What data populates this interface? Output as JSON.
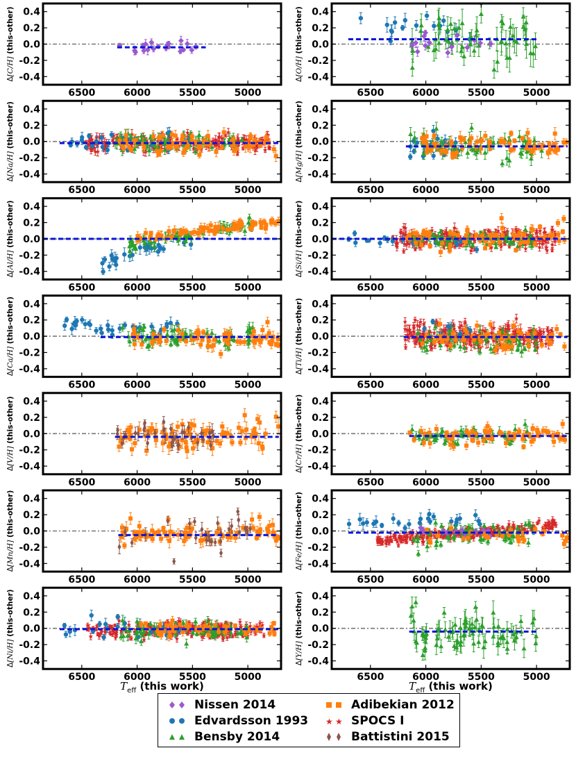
{
  "figure": {
    "xaxis_title_main": "T",
    "xaxis_title_sub": "eff",
    "xaxis_title_suffix": " (this work)"
  },
  "legend": [
    {
      "label": "Nissen 2014",
      "color": "#9b59d0",
      "marker": "diamond",
      "key": "nissen"
    },
    {
      "label": "Edvardsson 1993",
      "color": "#1f77b4",
      "marker": "circle",
      "key": "edv"
    },
    {
      "label": "Bensby 2014",
      "color": "#2ca02c",
      "marker": "triangle",
      "key": "bensby"
    },
    {
      "label": "Adibekian 2012",
      "color": "#ff7f0e",
      "marker": "square",
      "key": "adib"
    },
    {
      "label": "SPOCS I",
      "color": "#d62728",
      "marker": "star",
      "key": "spocs"
    },
    {
      "label": "Battistini 2015",
      "color": "#8c564b",
      "marker": "thin-diamond",
      "key": "batt"
    }
  ],
  "chart_data": [
    {
      "type": "scatter",
      "element": "C",
      "ylabel_elem": "C",
      "ylabel_suffix": " (this-other)",
      "xlim": [
        6850,
        4700
      ],
      "ylim": [
        -0.5,
        0.5
      ],
      "xticks": [
        6500,
        6000,
        5500,
        5000
      ],
      "yticks": [
        0.4,
        0.2,
        0.0,
        -0.2,
        -0.4
      ],
      "mean_offset": -0.04,
      "mean_range": [
        6180,
        5380
      ],
      "series": [
        {
          "key": "nissen",
          "n": 20,
          "tmin": 5380,
          "tmax": 6180,
          "mean": -0.02,
          "sd": 0.05,
          "err": 0.04
        }
      ]
    },
    {
      "type": "scatter",
      "element": "O",
      "ylabel_elem": "O",
      "ylabel_suffix": " (this-other)",
      "xlim": [
        6850,
        4700
      ],
      "ylim": [
        -0.5,
        0.5
      ],
      "xticks": [
        6500,
        6000,
        5500,
        5000
      ],
      "yticks": [
        0.4,
        0.2,
        0.0,
        -0.2,
        -0.4
      ],
      "mean_offset": 0.06,
      "mean_range": [
        6700,
        4980
      ],
      "series": [
        {
          "key": "edv",
          "n": 16,
          "tmin": 5500,
          "tmax": 6700,
          "mean": 0.22,
          "sd": 0.1,
          "err": 0.06
        },
        {
          "key": "bensby",
          "n": 60,
          "tmin": 4980,
          "tmax": 6150,
          "mean": 0.05,
          "sd": 0.15,
          "err": 0.12
        },
        {
          "key": "nissen",
          "n": 14,
          "tmin": 5400,
          "tmax": 6150,
          "mean": 0.04,
          "sd": 0.06,
          "err": 0.04
        }
      ]
    },
    {
      "type": "scatter",
      "element": "Na",
      "ylabel_elem": "Na",
      "ylabel_suffix": " (this-other)",
      "xlim": [
        6850,
        4700
      ],
      "ylim": [
        -0.5,
        0.5
      ],
      "xticks": [
        6500,
        6000,
        5500,
        5000
      ],
      "yticks": [
        0.4,
        0.2,
        0.0,
        -0.2,
        -0.4
      ],
      "mean_offset": -0.02,
      "mean_range": [
        6700,
        4720
      ],
      "series": [
        {
          "key": "spocs",
          "n": 180,
          "tmin": 4800,
          "tmax": 6480,
          "mean": -0.02,
          "sd": 0.05,
          "err": 0.04
        },
        {
          "key": "edv",
          "n": 30,
          "tmin": 5500,
          "tmax": 6700,
          "mean": -0.02,
          "sd": 0.05,
          "err": 0.05
        },
        {
          "key": "bensby",
          "n": 70,
          "tmin": 5000,
          "tmax": 6200,
          "mean": -0.01,
          "sd": 0.06,
          "err": 0.05
        },
        {
          "key": "adib",
          "n": 70,
          "tmin": 4720,
          "tmax": 6200,
          "mean": -0.03,
          "sd": 0.07,
          "err": 0.05
        }
      ]
    },
    {
      "type": "scatter",
      "element": "Mg",
      "ylabel_elem": "Mg",
      "ylabel_suffix": " (this-other)",
      "xlim": [
        6850,
        4700
      ],
      "ylim": [
        -0.5,
        0.5
      ],
      "xticks": [
        6500,
        6000,
        5500,
        5000
      ],
      "yticks": [
        0.4,
        0.2,
        0.0,
        -0.2,
        -0.4
      ],
      "mean_offset": -0.06,
      "mean_range": [
        6180,
        4720
      ],
      "series": [
        {
          "key": "edv",
          "n": 25,
          "tmin": 5700,
          "tmax": 6150,
          "mean": -0.07,
          "sd": 0.08,
          "err": 0.05
        },
        {
          "key": "bensby",
          "n": 70,
          "tmin": 4950,
          "tmax": 6150,
          "mean": -0.08,
          "sd": 0.09,
          "err": 0.06
        },
        {
          "key": "adib",
          "n": 70,
          "tmin": 4720,
          "tmax": 6050,
          "mean": -0.04,
          "sd": 0.07,
          "err": 0.05
        }
      ]
    },
    {
      "type": "scatter",
      "element": "Al",
      "ylabel_elem": "Al",
      "ylabel_suffix": " (this-other)",
      "xlim": [
        6850,
        4700
      ],
      "ylim": [
        -0.5,
        0.5
      ],
      "xticks": [
        6500,
        6000,
        5500,
        5000
      ],
      "yticks": [
        0.4,
        0.2,
        0.0,
        -0.2,
        -0.4
      ],
      "mean_offset": 0.0,
      "mean_range": [
        6850,
        4700
      ],
      "series": [
        {
          "key": "edv",
          "n": 30,
          "tmin": 5500,
          "tmax": 6350,
          "mean": -0.05,
          "sd": 0.1,
          "err": 0.06,
          "trend": 0.00045
        },
        {
          "key": "bensby",
          "n": 60,
          "tmin": 4950,
          "tmax": 6100,
          "mean": 0.0,
          "sd": 0.06,
          "err": 0.05,
          "trend": 0.00025
        },
        {
          "key": "adib",
          "n": 70,
          "tmin": 4720,
          "tmax": 6000,
          "mean": 0.05,
          "sd": 0.05,
          "err": 0.04,
          "trend": 0.00015
        }
      ]
    },
    {
      "type": "scatter",
      "element": "Si",
      "ylabel_elem": "Si",
      "ylabel_suffix": " (this-other)",
      "xlim": [
        6850,
        4700
      ],
      "ylim": [
        -0.5,
        0.5
      ],
      "xticks": [
        6500,
        6000,
        5500,
        5000
      ],
      "yticks": [
        0.4,
        0.2,
        0.0,
        -0.2,
        -0.4
      ],
      "mean_offset": 0.0,
      "mean_range": [
        6850,
        4700
      ],
      "series": [
        {
          "key": "spocs",
          "n": 200,
          "tmin": 4820,
          "tmax": 6300,
          "mean": 0.0,
          "sd": 0.06,
          "err": 0.04
        },
        {
          "key": "edv",
          "n": 25,
          "tmin": 5500,
          "tmax": 6700,
          "mean": 0.0,
          "sd": 0.04,
          "err": 0.04
        },
        {
          "key": "bensby",
          "n": 70,
          "tmin": 5000,
          "tmax": 6150,
          "mean": 0.0,
          "sd": 0.05,
          "err": 0.04
        },
        {
          "key": "adib",
          "n": 70,
          "tmin": 4720,
          "tmax": 6200,
          "mean": 0.02,
          "sd": 0.07,
          "err": 0.04
        }
      ]
    },
    {
      "type": "scatter",
      "element": "Ca",
      "ylabel_elem": "Ca",
      "ylabel_suffix": " (this-other)",
      "xlim": [
        6850,
        4700
      ],
      "ylim": [
        -0.5,
        0.5
      ],
      "xticks": [
        6500,
        6000,
        5500,
        5000
      ],
      "yticks": [
        0.4,
        0.2,
        0.0,
        -0.2,
        -0.4
      ],
      "mean_offset": -0.01,
      "mean_range": [
        6330,
        4720
      ],
      "series": [
        {
          "key": "edv",
          "n": 35,
          "tmin": 5600,
          "tmax": 6700,
          "mean": 0.12,
          "sd": 0.05,
          "err": 0.05
        },
        {
          "key": "bensby",
          "n": 70,
          "tmin": 4950,
          "tmax": 6150,
          "mean": -0.01,
          "sd": 0.06,
          "err": 0.05
        },
        {
          "key": "adib",
          "n": 70,
          "tmin": 4720,
          "tmax": 6050,
          "mean": -0.03,
          "sd": 0.06,
          "err": 0.05
        }
      ]
    },
    {
      "type": "scatter",
      "element": "Ti",
      "ylabel_elem": "Ti",
      "ylabel_suffix": " (this-other)",
      "xlim": [
        6850,
        4700
      ],
      "ylim": [
        -0.5,
        0.5
      ],
      "xticks": [
        6500,
        6000,
        5500,
        5000
      ],
      "yticks": [
        0.4,
        0.2,
        0.0,
        -0.2,
        -0.4
      ],
      "mean_offset": -0.01,
      "mean_range": [
        6200,
        4720
      ],
      "series": [
        {
          "key": "spocs",
          "n": 220,
          "tmin": 4850,
          "tmax": 6200,
          "mean": 0.0,
          "sd": 0.08,
          "err": 0.05
        },
        {
          "key": "edv",
          "n": 15,
          "tmin": 5600,
          "tmax": 6150,
          "mean": 0.03,
          "sd": 0.06,
          "err": 0.05
        },
        {
          "key": "bensby",
          "n": 60,
          "tmin": 5000,
          "tmax": 6100,
          "mean": -0.05,
          "sd": 0.07,
          "err": 0.05
        },
        {
          "key": "adib",
          "n": 60,
          "tmin": 4720,
          "tmax": 6050,
          "mean": -0.02,
          "sd": 0.06,
          "err": 0.05
        }
      ]
    },
    {
      "type": "scatter",
      "element": "V",
      "ylabel_elem": "V",
      "ylabel_suffix": " (this-other)",
      "xlim": [
        6850,
        4700
      ],
      "ylim": [
        -0.5,
        0.5
      ],
      "xticks": [
        6500,
        6000,
        5500,
        5000
      ],
      "yticks": [
        0.4,
        0.2,
        0.0,
        -0.2,
        -0.4
      ],
      "mean_offset": -0.04,
      "mean_range": [
        6200,
        4720
      ],
      "series": [
        {
          "key": "adib",
          "n": 90,
          "tmin": 4720,
          "tmax": 6180,
          "mean": -0.03,
          "sd": 0.1,
          "err": 0.07
        },
        {
          "key": "batt",
          "n": 35,
          "tmin": 5300,
          "tmax": 6180,
          "mean": -0.02,
          "sd": 0.11,
          "err": 0.07
        }
      ]
    },
    {
      "type": "scatter",
      "element": "Cr",
      "ylabel_elem": "Cr",
      "ylabel_suffix": " (this-other)",
      "xlim": [
        6850,
        4700
      ],
      "ylim": [
        -0.5,
        0.5
      ],
      "xticks": [
        6500,
        6000,
        5500,
        5000
      ],
      "yticks": [
        0.4,
        0.2,
        0.0,
        -0.2,
        -0.4
      ],
      "mean_offset": -0.03,
      "mean_range": [
        6150,
        4720
      ],
      "series": [
        {
          "key": "bensby",
          "n": 60,
          "tmin": 5000,
          "tmax": 6150,
          "mean": -0.03,
          "sd": 0.06,
          "err": 0.04
        },
        {
          "key": "adib",
          "n": 70,
          "tmin": 4720,
          "tmax": 6150,
          "mean": -0.03,
          "sd": 0.05,
          "err": 0.04
        }
      ]
    },
    {
      "type": "scatter",
      "element": "Mn",
      "ylabel_elem": "Mn",
      "ylabel_suffix": " (this-other)",
      "xlim": [
        6850,
        4700
      ],
      "ylim": [
        -0.5,
        0.5
      ],
      "xticks": [
        6500,
        6000,
        5500,
        5000
      ],
      "yticks": [
        0.4,
        0.2,
        0.0,
        -0.2,
        -0.4
      ],
      "mean_offset": -0.05,
      "mean_range": [
        6170,
        4720
      ],
      "series": [
        {
          "key": "adib",
          "n": 80,
          "tmin": 4720,
          "tmax": 6150,
          "mean": -0.03,
          "sd": 0.07,
          "err": 0.06
        },
        {
          "key": "batt",
          "n": 30,
          "tmin": 4950,
          "tmax": 6180,
          "mean": -0.08,
          "sd": 0.11,
          "err": 0.06
        }
      ]
    },
    {
      "type": "scatter",
      "element": "Fe",
      "ylabel_elem": "Fe",
      "ylabel_suffix": " (this-other)",
      "xlim": [
        6850,
        4700
      ],
      "ylim": [
        -0.5,
        0.5
      ],
      "xticks": [
        6500,
        6000,
        5500,
        5000
      ],
      "yticks": [
        0.4,
        0.2,
        0.0,
        -0.2,
        -0.4
      ],
      "mean_offset": -0.02,
      "mean_range": [
        6700,
        4720
      ],
      "series": [
        {
          "key": "spocs",
          "n": 220,
          "tmin": 4820,
          "tmax": 6450,
          "mean": -0.04,
          "sd": 0.05,
          "err": 0.03,
          "trend": 0.00012
        },
        {
          "key": "edv",
          "n": 25,
          "tmin": 5500,
          "tmax": 6700,
          "mean": 0.12,
          "sd": 0.05,
          "err": 0.05
        },
        {
          "key": "bensby",
          "n": 70,
          "tmin": 5000,
          "tmax": 6200,
          "mean": -0.06,
          "sd": 0.07,
          "err": 0.05
        },
        {
          "key": "nissen",
          "n": 15,
          "tmin": 5400,
          "tmax": 6150,
          "mean": 0.0,
          "sd": 0.03,
          "err": 0.03
        },
        {
          "key": "adib",
          "n": 30,
          "tmin": 4720,
          "tmax": 6000,
          "mean": -0.05,
          "sd": 0.05,
          "err": 0.04
        }
      ]
    },
    {
      "type": "scatter",
      "element": "Ni",
      "ylabel_elem": "Ni",
      "ylabel_suffix": " (this-other)",
      "xlim": [
        6850,
        4700
      ],
      "ylim": [
        -0.5,
        0.5
      ],
      "xticks": [
        6500,
        6000,
        5500,
        5000
      ],
      "yticks": [
        0.4,
        0.2,
        0.0,
        -0.2,
        -0.4
      ],
      "mean_offset": -0.01,
      "mean_range": [
        6700,
        4720
      ],
      "series": [
        {
          "key": "spocs",
          "n": 200,
          "tmin": 4850,
          "tmax": 6450,
          "mean": -0.02,
          "sd": 0.05,
          "err": 0.03
        },
        {
          "key": "edv",
          "n": 25,
          "tmin": 5600,
          "tmax": 6700,
          "mean": 0.0,
          "sd": 0.07,
          "err": 0.05
        },
        {
          "key": "bensby",
          "n": 70,
          "tmin": 5000,
          "tmax": 6150,
          "mean": -0.02,
          "sd": 0.06,
          "err": 0.05
        },
        {
          "key": "adib",
          "n": 50,
          "tmin": 4720,
          "tmax": 6100,
          "mean": 0.0,
          "sd": 0.05,
          "err": 0.04
        }
      ]
    },
    {
      "type": "scatter",
      "element": "Y",
      "ylabel_elem": "Y",
      "ylabel_suffix": " (this-other)",
      "xlim": [
        6850,
        4700
      ],
      "ylim": [
        -0.5,
        0.5
      ],
      "xticks": [
        6500,
        6000,
        5500,
        5000
      ],
      "yticks": [
        0.4,
        0.2,
        0.0,
        -0.2,
        -0.4
      ],
      "mean_offset": -0.04,
      "mean_range": [
        6150,
        4980
      ],
      "series": [
        {
          "key": "bensby",
          "n": 80,
          "tmin": 4980,
          "tmax": 6150,
          "mean": -0.03,
          "sd": 0.13,
          "err": 0.1
        }
      ]
    }
  ]
}
